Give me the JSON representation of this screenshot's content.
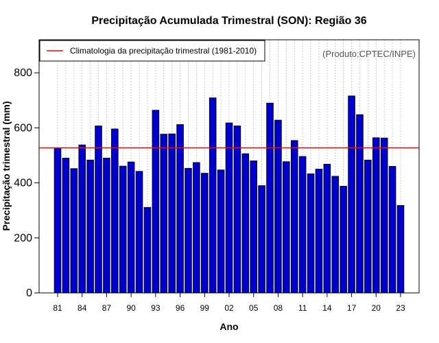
{
  "chart_data": {
    "type": "bar",
    "title": "Precipitação Acumulada Trimestral (SON): Região 36",
    "xlabel": "Ano",
    "ylabel": "Precipitação trimestral (mm)",
    "ylim": [
      0,
      920
    ],
    "yticks": [
      0,
      200,
      400,
      600,
      800
    ],
    "years": [
      1981,
      1982,
      1983,
      1984,
      1985,
      1986,
      1987,
      1988,
      1989,
      1990,
      1991,
      1992,
      1993,
      1994,
      1995,
      1996,
      1997,
      1998,
      1999,
      2000,
      2001,
      2002,
      2003,
      2004,
      2005,
      2006,
      2007,
      2008,
      2009,
      2010,
      2011,
      2012,
      2013,
      2014,
      2015,
      2016,
      2017,
      2018,
      2019,
      2020,
      2021,
      2022,
      2023
    ],
    "values": [
      527,
      490,
      452,
      538,
      483,
      607,
      490,
      596,
      461,
      476,
      442,
      311,
      664,
      577,
      578,
      612,
      453,
      474,
      435,
      709,
      447,
      618,
      607,
      506,
      480,
      390,
      690,
      628,
      477,
      554,
      496,
      433,
      450,
      468,
      424,
      388,
      716,
      648,
      483,
      564,
      563,
      460,
      318
    ],
    "xtick_labels": [
      "81",
      "84",
      "87",
      "90",
      "93",
      "96",
      "99",
      "02",
      "05",
      "08",
      "11",
      "14",
      "17",
      "20",
      "23"
    ],
    "climatology": 527,
    "legend": "Climatologia da precipitação trimestral (1981-2010)",
    "credit": "(Produto:CPTEC/INPE)",
    "colors": {
      "bar": "#0000CD",
      "bar_edge": "#000000",
      "climatology": "#FF0000",
      "grid": "#BBBBBB"
    }
  }
}
